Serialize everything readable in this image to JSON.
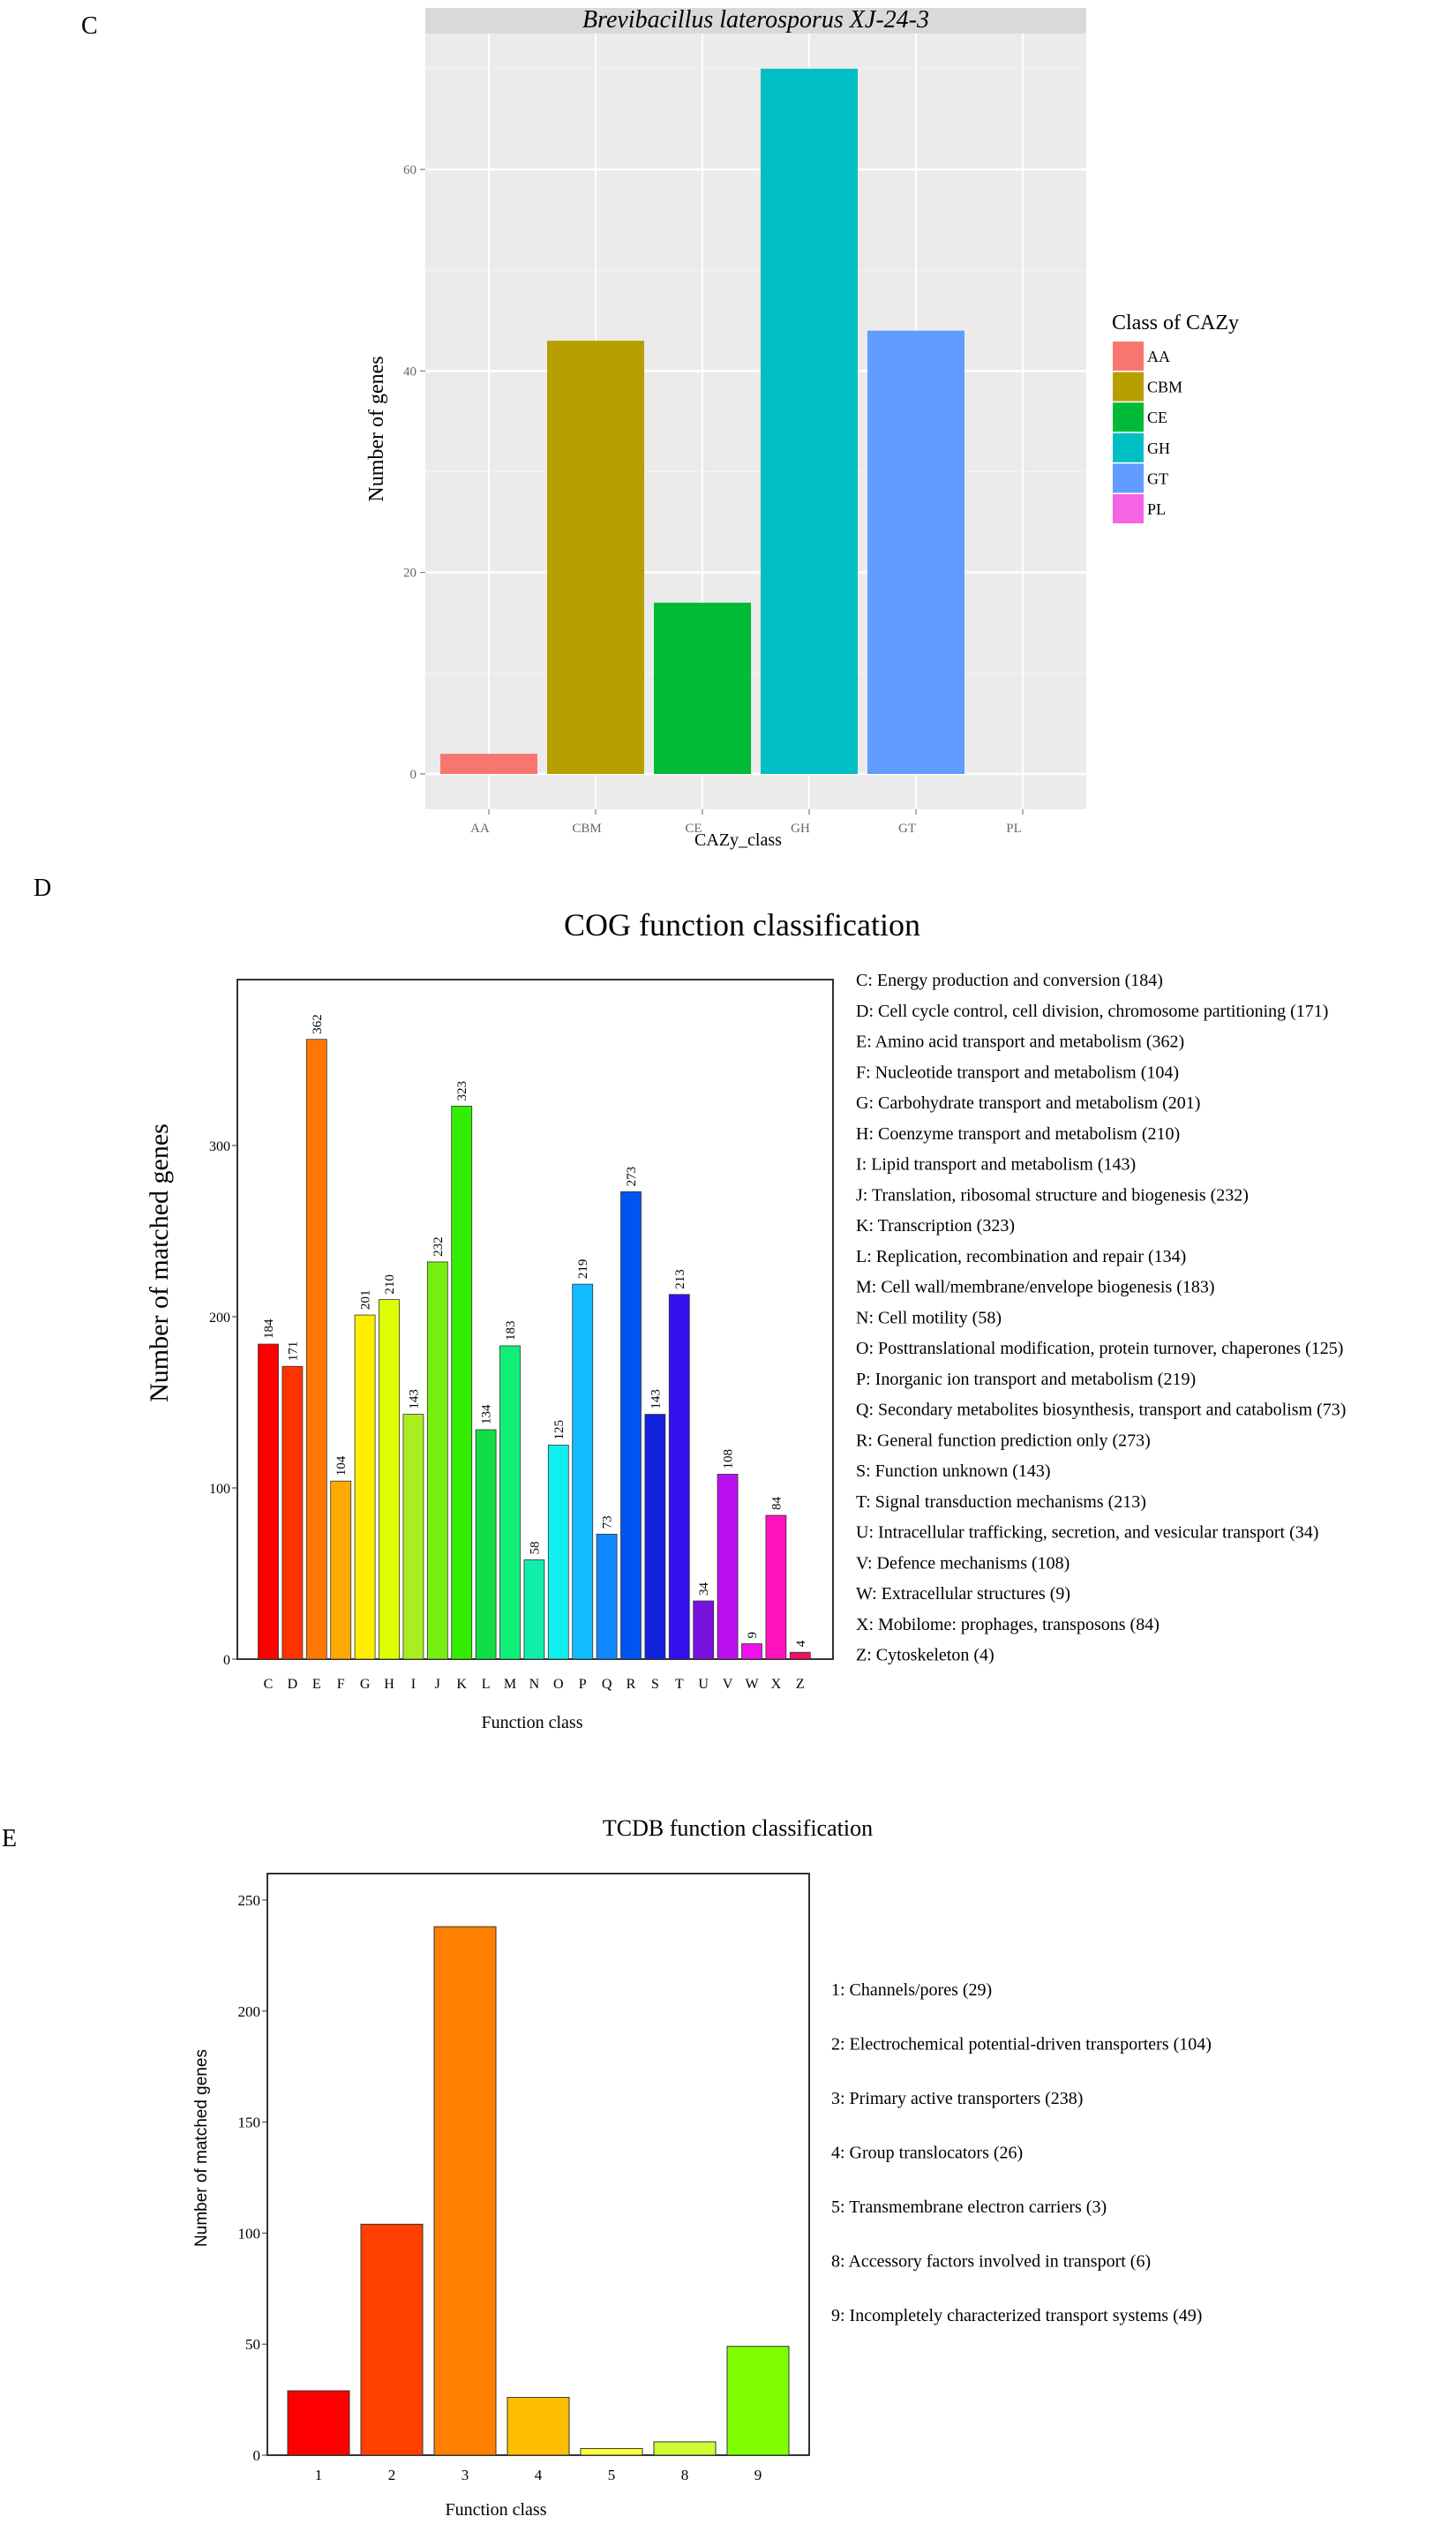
{
  "chart_data": [
    {
      "panel": "C",
      "type": "bar",
      "title": "Brevibacillus laterosporus XJ-24-3",
      "xlabel": "CAZy_class",
      "ylabel": "Number of genes",
      "categories": [
        "AA",
        "CBM",
        "CE",
        "GH",
        "GT",
        "PL"
      ],
      "values": [
        2,
        43,
        17,
        70,
        44,
        0
      ],
      "yticks": [
        0,
        20,
        40,
        60
      ],
      "ylim": [
        -3.5,
        77
      ],
      "grid": true,
      "legend": {
        "title": "Class of CAZy",
        "position": "right",
        "entries": [
          "AA",
          "CBM",
          "CE",
          "GH",
          "GT",
          "PL"
        ]
      },
      "colors": [
        "#F8766D",
        "#B79F00",
        "#00BA38",
        "#00BFC4",
        "#619CFF",
        "#F564E3"
      ]
    },
    {
      "panel": "D",
      "type": "bar",
      "title": "COG function classification",
      "xlabel": "Function class",
      "ylabel": "Number of matched genes",
      "categories": [
        "C",
        "D",
        "E",
        "F",
        "G",
        "H",
        "I",
        "J",
        "K",
        "L",
        "M",
        "N",
        "O",
        "P",
        "Q",
        "R",
        "S",
        "T",
        "U",
        "V",
        "W",
        "X",
        "Z"
      ],
      "values": [
        184,
        171,
        362,
        104,
        201,
        210,
        143,
        232,
        323,
        134,
        183,
        58,
        125,
        219,
        73,
        273,
        143,
        213,
        34,
        108,
        9,
        84,
        4
      ],
      "yticks": [
        0,
        100,
        200,
        300
      ],
      "ylim": [
        0,
        397
      ],
      "grid": false,
      "legend": {
        "position": "right",
        "entries": [
          "C: Energy production and conversion  (184)",
          "D: Cell cycle control, cell division, chromosome partitioning  (171)",
          "E: Amino acid transport and metabolism  (362)",
          "F: Nucleotide transport and metabolism  (104)",
          "G: Carbohydrate transport and metabolism  (201)",
          "H: Coenzyme transport and metabolism  (210)",
          "I: Lipid transport and metabolism  (143)",
          "J: Translation, ribosomal structure and biogenesis  (232)",
          "K: Transcription  (323)",
          "L: Replication, recombination and repair  (134)",
          "M: Cell wall/membrane/envelope biogenesis  (183)",
          "N: Cell motility  (58)",
          "O: Posttranslational modification, protein turnover, chaperones  (125)",
          "P: Inorganic ion transport and metabolism  (219)",
          "Q: Secondary metabolites biosynthesis, transport and catabolism  (73)",
          "R: General function prediction only  (273)",
          "S: Function unknown  (143)",
          "T: Signal transduction mechanisms  (213)",
          "U: Intracellular trafficking, secretion, and vesicular transport  (34)",
          "V: Defence mechanisms  (108)",
          "W: Extracellular structures  (9)",
          "X: Mobilome: prophages, transposons  (84)",
          "Z: Cytoskeleton  (4)"
        ]
      },
      "colors": [
        "#FF0000",
        "#FF3300",
        "#FF7700",
        "#FFAA00",
        "#FFEE00",
        "#DDFF00",
        "#AAEE22",
        "#77EE11",
        "#33EE00",
        "#11DD44",
        "#11EE77",
        "#11EEAA",
        "#11EEEE",
        "#11BBFF",
        "#1188FF",
        "#0055EE",
        "#1122DD",
        "#3311EE",
        "#7711DD",
        "#BB11EE",
        "#EE11EE",
        "#FF11BB",
        "#EE1166"
      ]
    },
    {
      "panel": "E",
      "type": "bar",
      "title": "TCDB function classification",
      "xlabel": "Function class",
      "ylabel": "Number of matched genes",
      "categories": [
        "1",
        "2",
        "3",
        "4",
        "5",
        "8",
        "9"
      ],
      "values": [
        29,
        104,
        238,
        26,
        3,
        6,
        49
      ],
      "yticks": [
        0,
        50,
        100,
        150,
        200,
        250
      ],
      "ylim": [
        0,
        262
      ],
      "grid": false,
      "legend": {
        "position": "right",
        "entries": [
          "1: Channels/pores  (29)",
          "2: Electrochemical potential-driven transporters  (104)",
          "3: Primary active transporters  (238)",
          "4: Group translocators  (26)",
          "5: Transmembrane electron carriers  (3)",
          "8: Accessory factors involved in transport  (6)",
          "9: Incompletely characterized transport systems  (49)"
        ]
      },
      "colors": [
        "#FF0000",
        "#FF4000",
        "#FF8000",
        "#FFBF00",
        "#FFFF40",
        "#CCFF33",
        "#80FF00"
      ]
    }
  ],
  "panel_labels": [
    "C",
    "D",
    "E"
  ]
}
